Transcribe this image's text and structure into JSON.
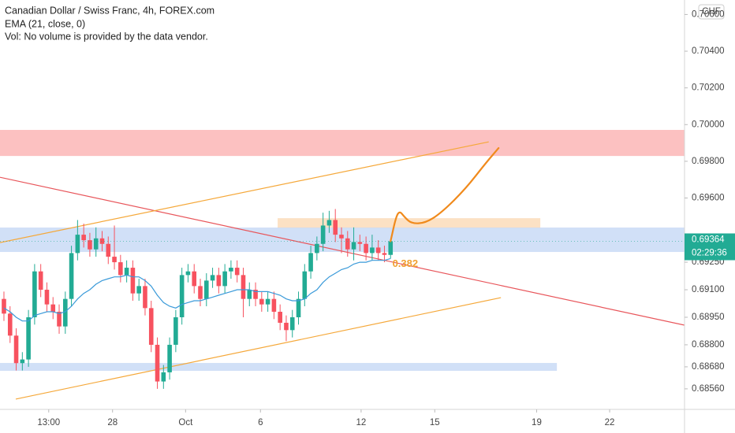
{
  "chart_data": {
    "type": "candlestick",
    "title": "Canadian Dollar / Swiss Franc, 4h, FOREX.com",
    "subtitle": "EMA (21, close, 0)",
    "note": "Vol: No volume is provided by the data vendor.",
    "currency": "CHF",
    "up_color": "#22ab94",
    "down_color": "#f7525f",
    "xlim": [
      -0.64,
      110.9
    ],
    "ylim": [
      0.68448,
      0.70679
    ],
    "yticks": [
      {
        "value": 0.706,
        "label": "0.70600"
      },
      {
        "value": 0.704,
        "label": "0.70400"
      },
      {
        "value": 0.702,
        "label": "0.70200"
      },
      {
        "value": 0.7,
        "label": "0.70000"
      },
      {
        "value": 0.698,
        "label": "0.69800"
      },
      {
        "value": 0.696,
        "label": "0.69600"
      },
      {
        "value": 0.6925,
        "label": "0.69250"
      },
      {
        "value": 0.691,
        "label": "0.69100"
      },
      {
        "value": 0.6895,
        "label": "0.68950"
      },
      {
        "value": 0.688,
        "label": "0.68800"
      },
      {
        "value": 0.6868,
        "label": "0.68680"
      },
      {
        "value": 0.6856,
        "label": "0.68560"
      }
    ],
    "xticks": [
      {
        "value": 7.3,
        "label": "13:00"
      },
      {
        "value": 17.7,
        "label": "28"
      },
      {
        "value": 29.6,
        "label": "Oct"
      },
      {
        "value": 41.8,
        "label": "6"
      },
      {
        "value": 58.2,
        "label": "12"
      },
      {
        "value": 70.2,
        "label": "15"
      },
      {
        "value": 86.8,
        "label": "19"
      },
      {
        "value": 98.7,
        "label": "22"
      }
    ],
    "open": [
      0.6905,
      0.6897,
      0.6885,
      0.687,
      0.6872,
      0.6895,
      0.692,
      0.691,
      0.6902,
      0.6898,
      0.689,
      0.6905,
      0.693,
      0.694,
      0.6937,
      0.6932,
      0.6938,
      0.6935,
      0.6928,
      0.6925,
      0.6918,
      0.6922,
      0.6908,
      0.6912,
      0.69,
      0.688,
      0.686,
      0.6865,
      0.688,
      0.6895,
      0.6918,
      0.692,
      0.6912,
      0.6905,
      0.6915,
      0.6918,
      0.6912,
      0.692,
      0.6922,
      0.6918,
      0.6905,
      0.691,
      0.6905,
      0.6902,
      0.6905,
      0.6898,
      0.6892,
      0.6888,
      0.6895,
      0.6905,
      0.692,
      0.693,
      0.6935,
      0.6945,
      0.6948,
      0.694,
      0.6938,
      0.6932,
      0.6936,
      0.6935,
      0.693,
      0.6933,
      0.693,
      0.6929
    ],
    "high": [
      0.6909,
      0.6901,
      0.6889,
      0.6876,
      0.6899,
      0.6924,
      0.6924,
      0.6914,
      0.6906,
      0.6902,
      0.6909,
      0.6934,
      0.6948,
      0.6946,
      0.6941,
      0.6944,
      0.6942,
      0.6939,
      0.6945,
      0.6929,
      0.6926,
      0.6926,
      0.6916,
      0.6916,
      0.6904,
      0.6884,
      0.6869,
      0.6884,
      0.6899,
      0.6922,
      0.6924,
      0.6924,
      0.6916,
      0.6919,
      0.6922,
      0.6922,
      0.6924,
      0.6926,
      0.6926,
      0.6922,
      0.6914,
      0.6914,
      0.6909,
      0.6909,
      0.6909,
      0.6902,
      0.6896,
      0.6899,
      0.6909,
      0.6924,
      0.6934,
      0.6939,
      0.6952,
      0.6953,
      0.6954,
      0.6944,
      0.6942,
      0.6944,
      0.694,
      0.6939,
      0.694,
      0.6937,
      0.6934,
      0.6937
    ],
    "low": [
      0.6893,
      0.6881,
      0.6866,
      0.6866,
      0.6868,
      0.6891,
      0.6906,
      0.6898,
      0.6894,
      0.6886,
      0.6886,
      0.6901,
      0.6926,
      0.6933,
      0.6928,
      0.6928,
      0.6931,
      0.6924,
      0.6921,
      0.6914,
      0.6914,
      0.6904,
      0.6904,
      0.6896,
      0.6876,
      0.6856,
      0.6856,
      0.6861,
      0.6876,
      0.6891,
      0.6914,
      0.6908,
      0.6901,
      0.6901,
      0.6911,
      0.6908,
      0.6908,
      0.6916,
      0.6914,
      0.6895,
      0.6901,
      0.6901,
      0.6898,
      0.6898,
      0.6894,
      0.6888,
      0.6882,
      0.6884,
      0.6891,
      0.6901,
      0.6916,
      0.6926,
      0.6931,
      0.6941,
      0.6936,
      0.693,
      0.6928,
      0.6926,
      0.6931,
      0.6926,
      0.6926,
      0.6926,
      0.6925,
      0.6927
    ],
    "close": [
      0.6897,
      0.6885,
      0.687,
      0.6872,
      0.6895,
      0.692,
      0.691,
      0.6902,
      0.6898,
      0.689,
      0.6905,
      0.693,
      0.694,
      0.6937,
      0.6932,
      0.6938,
      0.6935,
      0.6928,
      0.6925,
      0.6918,
      0.6922,
      0.6908,
      0.6912,
      0.69,
      0.688,
      0.686,
      0.6865,
      0.688,
      0.6895,
      0.6918,
      0.692,
      0.6912,
      0.6905,
      0.6915,
      0.6918,
      0.6912,
      0.692,
      0.6922,
      0.6918,
      0.6905,
      0.691,
      0.6905,
      0.6902,
      0.6905,
      0.6898,
      0.6892,
      0.6888,
      0.6895,
      0.6905,
      0.692,
      0.693,
      0.6935,
      0.6945,
      0.6948,
      0.694,
      0.6938,
      0.6932,
      0.6936,
      0.6935,
      0.693,
      0.6933,
      0.693,
      0.6929,
      0.69364
    ],
    "ema": {
      "color": "#3a9ad9",
      "values": [
        0.69,
        0.6898,
        0.6895,
        0.6893,
        0.6893,
        0.6896,
        0.6897,
        0.6898,
        0.6898,
        0.6897,
        0.6898,
        0.6901,
        0.6905,
        0.6908,
        0.691,
        0.6913,
        0.6915,
        0.6916,
        0.6917,
        0.6917,
        0.6918,
        0.6917,
        0.6917,
        0.6915,
        0.6912,
        0.6907,
        0.6903,
        0.6901,
        0.69,
        0.6902,
        0.6903,
        0.6904,
        0.6904,
        0.6905,
        0.6906,
        0.6907,
        0.6908,
        0.6909,
        0.691,
        0.691,
        0.691,
        0.6909,
        0.6909,
        0.6909,
        0.6908,
        0.6907,
        0.6905,
        0.6904,
        0.6904,
        0.6905,
        0.6908,
        0.691,
        0.6914,
        0.6917,
        0.6919,
        0.6921,
        0.6922,
        0.6924,
        0.6925,
        0.6925,
        0.6926,
        0.6926,
        0.6926,
        0.6927
      ]
    },
    "zones": [
      {
        "from": -0.64,
        "to": 110.9,
        "low": 0.69829,
        "high": 0.69971,
        "color": "#fbb6b6"
      },
      {
        "from": 44.6,
        "to": 87.4,
        "low": 0.69434,
        "high": 0.6949,
        "color": "#fcdcba"
      },
      {
        "from": -0.64,
        "to": 110.9,
        "low": 0.69306,
        "high": 0.69439,
        "color": "#c9daf6"
      },
      {
        "from": -0.64,
        "to": 90.1,
        "low": 0.68658,
        "high": 0.68701,
        "color": "#c9daf6"
      }
    ],
    "trendlines": [
      {
        "color": "#e8555a",
        "points": [
          [
            -0.64,
            0.69713
          ],
          [
            110.9,
            0.68907
          ]
        ]
      },
      {
        "color": "#f5a83a",
        "points": [
          [
            -0.64,
            0.69357
          ],
          [
            79.0,
            0.69906
          ]
        ]
      },
      {
        "color": "#f5a83a",
        "points": [
          [
            1.93,
            0.68504
          ],
          [
            80.98,
            0.69057
          ]
        ]
      }
    ],
    "projection": {
      "color": "#f08a1c",
      "points": [
        [
          63,
          0.69364
        ],
        [
          63.9,
          0.69499
        ],
        [
          64.5,
          0.69529
        ],
        [
          65.2,
          0.69499
        ],
        [
          66.4,
          0.6946
        ],
        [
          68.7,
          0.69464
        ],
        [
          71.3,
          0.6952
        ],
        [
          75.2,
          0.69649
        ],
        [
          78.4,
          0.69786
        ],
        [
          80.6,
          0.69872
        ]
      ]
    },
    "annotations": [
      {
        "text": "0.382",
        "index": 63.3,
        "price": 0.6924,
        "color": "#f0a030"
      }
    ],
    "last_price": {
      "value": 0.69364,
      "label": "0.69364",
      "countdown": "02:29:36",
      "color": "#22ab94"
    }
  }
}
